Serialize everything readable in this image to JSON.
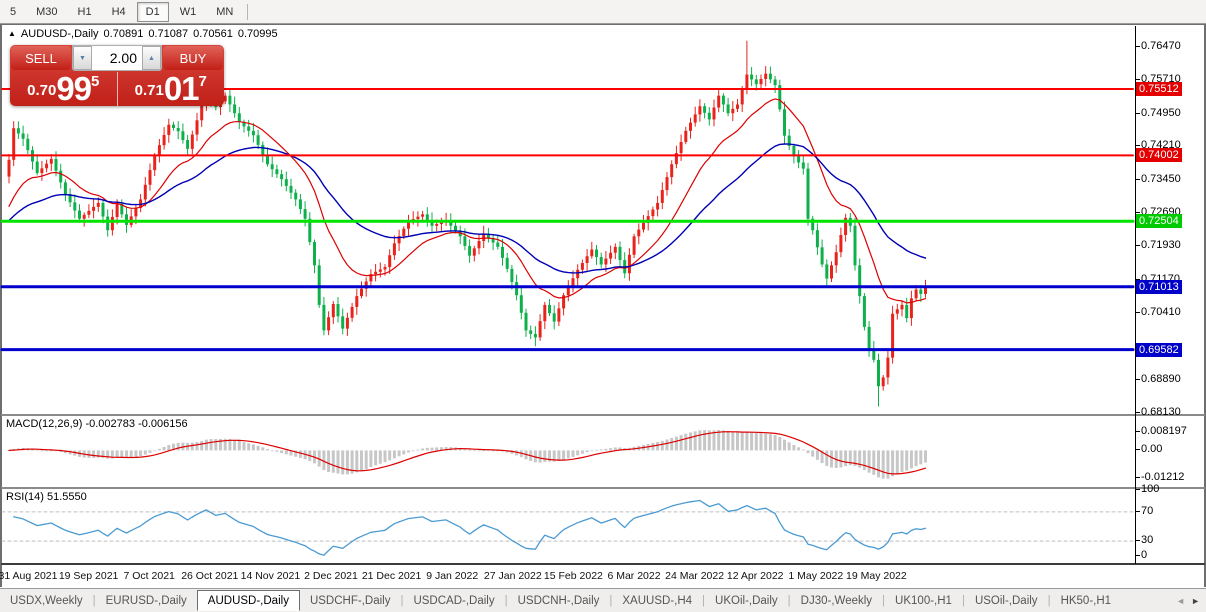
{
  "toolbar": {
    "timeframes": [
      {
        "label": "5",
        "selected": false
      },
      {
        "label": "M30",
        "selected": false
      },
      {
        "label": "H1",
        "selected": false
      },
      {
        "label": "H4",
        "selected": false
      },
      {
        "label": "D1",
        "selected": true
      },
      {
        "label": "W1",
        "selected": false
      },
      {
        "label": "MN",
        "selected": false
      }
    ]
  },
  "chart_header": {
    "symbol": "AUDUSD-,Daily",
    "open": "0.70891",
    "high": "0.71087",
    "low": "0.70561",
    "close": "0.70995"
  },
  "trade_panel": {
    "sell_label": "SELL",
    "buy_label": "BUY",
    "volume": "2.00",
    "spinner_down_icon": "▼",
    "spinner_up_icon": "▲",
    "sell_price": {
      "small": "0.70",
      "big": "99",
      "sup": "5"
    },
    "buy_price": {
      "small": "0.71",
      "big": "01",
      "sup": "7"
    }
  },
  "chart_data": {
    "type": "candlestick",
    "title": "AUDUSD-,Daily",
    "ohlc_display": {
      "open": 0.70891,
      "high": 0.71087,
      "low": 0.70561,
      "close": 0.70995
    },
    "up_color": "#e8231c",
    "down_color": "#0db04b",
    "price_axis_ticks": [
      {
        "label": "0.76470",
        "value": 0.7647
      },
      {
        "label": "0.75710",
        "value": 0.7571
      },
      {
        "label": "0.74950",
        "value": 0.7495
      },
      {
        "label": "0.74210",
        "value": 0.7421
      },
      {
        "label": "0.73450",
        "value": 0.7345
      },
      {
        "label": "0.72690",
        "value": 0.7269
      },
      {
        "label": "0.71930",
        "value": 0.7193
      },
      {
        "label": "0.71170",
        "value": 0.7117
      },
      {
        "label": "0.70410",
        "value": 0.7041
      },
      {
        "label": "0.68890",
        "value": 0.6889
      },
      {
        "label": "0.68130",
        "value": 0.6813
      }
    ],
    "ylim": [
      0.68118,
      0.76945
    ],
    "levels": [
      {
        "value": 0.75512,
        "label": "0.75512",
        "color": "#ff0000",
        "badge": "#e40000",
        "width": 2
      },
      {
        "value": 0.74002,
        "label": "0.74002",
        "color": "#ff0000",
        "badge": "#e40000",
        "width": 2
      },
      {
        "value": 0.72504,
        "label": "0.72504",
        "color": "#00e400",
        "badge": "#00ca00",
        "width": 3
      },
      {
        "value": 0.71013,
        "label": "0.71013",
        "color": "#0000cd",
        "badge": "#0000c8",
        "width": 3
      },
      {
        "value": 0.69582,
        "label": "0.69582",
        "color": "#0000cd",
        "badge": "#0000c8",
        "width": 3
      }
    ],
    "moving_averages": [
      {
        "period": 16,
        "color": "#dd0000",
        "seed": 0.727,
        "width": 1.2
      },
      {
        "period": 40,
        "color": "#0000b4",
        "seed": 0.7245,
        "width": 1.4
      }
    ],
    "candles": {
      "count": 196,
      "first_open": 0.7352,
      "wick_base": 0.0005,
      "wick_amp": 0.0013,
      "close_anchors": [
        [
          0,
          0.739
        ],
        [
          1,
          0.7462
        ],
        [
          3,
          0.7438
        ],
        [
          6,
          0.736
        ],
        [
          9,
          0.7392
        ],
        [
          12,
          0.7312
        ],
        [
          15,
          0.7256
        ],
        [
          19,
          0.7292
        ],
        [
          21,
          0.723
        ],
        [
          23,
          0.729
        ],
        [
          25,
          0.7242
        ],
        [
          28,
          0.73
        ],
        [
          31,
          0.74
        ],
        [
          34,
          0.747
        ],
        [
          36,
          0.7455
        ],
        [
          38,
          0.7415
        ],
        [
          40,
          0.748
        ],
        [
          42,
          0.7546
        ],
        [
          44,
          0.751
        ],
        [
          46,
          0.7536
        ],
        [
          49,
          0.7476
        ],
        [
          52,
          0.7446
        ],
        [
          55,
          0.738
        ],
        [
          58,
          0.7346
        ],
        [
          61,
          0.73
        ],
        [
          63,
          0.7256
        ],
        [
          65,
          0.715
        ],
        [
          66,
          0.706
        ],
        [
          67,
          0.7002
        ],
        [
          69,
          0.7062
        ],
        [
          71,
          0.7006
        ],
        [
          74,
          0.708
        ],
        [
          77,
          0.713
        ],
        [
          80,
          0.7146
        ],
        [
          82,
          0.72
        ],
        [
          85,
          0.725
        ],
        [
          88,
          0.7266
        ],
        [
          90,
          0.724
        ],
        [
          93,
          0.7252
        ],
        [
          96,
          0.7216
        ],
        [
          98,
          0.7172
        ],
        [
          101,
          0.7222
        ],
        [
          104,
          0.7192
        ],
        [
          106,
          0.7142
        ],
        [
          108,
          0.7082
        ],
        [
          110,
          0.7002
        ],
        [
          112,
          0.6986
        ],
        [
          114,
          0.706
        ],
        [
          116,
          0.7022
        ],
        [
          118,
          0.7082
        ],
        [
          121,
          0.714
        ],
        [
          124,
          0.7186
        ],
        [
          126,
          0.7152
        ],
        [
          129,
          0.7192
        ],
        [
          131,
          0.7132
        ],
        [
          133,
          0.7216
        ],
        [
          136,
          0.7262
        ],
        [
          138,
          0.7292
        ],
        [
          141,
          0.738
        ],
        [
          144,
          0.7456
        ],
        [
          147,
          0.7512
        ],
        [
          149,
          0.7482
        ],
        [
          151,
          0.7536
        ],
        [
          153,
          0.7496
        ],
        [
          155,
          0.7516
        ],
        [
          157,
          0.7584
        ],
        [
          159,
          0.7562
        ],
        [
          161,
          0.7586
        ],
        [
          163,
          0.756
        ],
        [
          164,
          0.7505
        ],
        [
          165,
          0.7445
        ],
        [
          167,
          0.7398
        ],
        [
          169,
          0.737
        ],
        [
          170,
          0.7256
        ],
        [
          171,
          0.723
        ],
        [
          173,
          0.7152
        ],
        [
          174,
          0.712
        ],
        [
          176,
          0.718
        ],
        [
          178,
          0.7258
        ],
        [
          179,
          0.724
        ],
        [
          180,
          0.715
        ],
        [
          181,
          0.708
        ],
        [
          182,
          0.701
        ],
        [
          183,
          0.696
        ],
        [
          184,
          0.6935
        ],
        [
          185,
          0.6875
        ],
        [
          186,
          0.6895
        ],
        [
          187,
          0.694
        ],
        [
          188,
          0.704
        ],
        [
          189,
          0.705
        ],
        [
          190,
          0.706
        ],
        [
          191,
          0.703
        ],
        [
          192,
          0.7075
        ],
        [
          193,
          0.7095
        ],
        [
          194,
          0.7085
        ],
        [
          195,
          0.70995
        ]
      ],
      "wick_overrides": [
        {
          "i": 1,
          "high": 0.7478
        },
        {
          "i": 42,
          "high": 0.7556
        },
        {
          "i": 157,
          "high": 0.7661
        },
        {
          "i": 67,
          "low": 0.6991
        },
        {
          "i": 71,
          "low": 0.6993
        },
        {
          "i": 112,
          "low": 0.6966
        },
        {
          "i": 185,
          "low": 0.6829
        }
      ]
    },
    "macd": {
      "label": "MACD(12,26,9) -0.002783 -0.006156",
      "fast": 12,
      "slow": 26,
      "signal": 9,
      "value": -0.002783,
      "signal_value": -0.006156,
      "hist_color": "#c7c7c7",
      "line_color": "#dd0000",
      "axis_ticks": [
        {
          "label": "0.008197",
          "value": 0.008197
        },
        {
          "label": "0.00",
          "value": 0
        },
        {
          "label": "-0.01212",
          "value": -0.01212
        }
      ]
    },
    "rsi": {
      "label": "RSI(14) 51.5550",
      "period": 14,
      "value": 51.555,
      "color": "#4a9ad3",
      "seed_gain": 0.0022,
      "seed_loss": 0.0016,
      "dashed_levels": [
        70,
        30
      ],
      "axis_ticks": [
        {
          "label": "100",
          "value": 100
        },
        {
          "label": "70",
          "value": 70
        },
        {
          "label": "30",
          "value": 30
        },
        {
          "label": "0",
          "value": 0
        }
      ]
    },
    "x_axis_dates": [
      "31 Aug 2021",
      "19 Sep 2021",
      "7 Oct 2021",
      "26 Oct 2021",
      "14 Nov 2021",
      "2 Dec 2021",
      "21 Dec 2021",
      "9 Jan 2022",
      "27 Jan 2022",
      "15 Feb 2022",
      "6 Mar 2022",
      "24 Mar 2022",
      "12 Apr 2022",
      "1 May 2022",
      "19 May 2022"
    ]
  },
  "tabs": {
    "items": [
      {
        "label": "USDX,Weekly",
        "active": false
      },
      {
        "label": "EURUSD-,Daily",
        "active": false
      },
      {
        "label": "AUDUSD-,Daily",
        "active": true
      },
      {
        "label": "USDCHF-,Daily",
        "active": false
      },
      {
        "label": "USDCAD-,Daily",
        "active": false
      },
      {
        "label": "USDCNH-,Daily",
        "active": false
      },
      {
        "label": "XAUUSD-,H4",
        "active": false
      },
      {
        "label": "UKOil-,Daily",
        "active": false
      },
      {
        "label": "DJ30-,Weekly",
        "active": false
      },
      {
        "label": "UK100-,H1",
        "active": false
      },
      {
        "label": "USOil-,Daily",
        "active": false
      },
      {
        "label": "HK50-,H1",
        "active": false
      }
    ],
    "scroll_left_icon": "◄",
    "scroll_right_icon": "►"
  }
}
